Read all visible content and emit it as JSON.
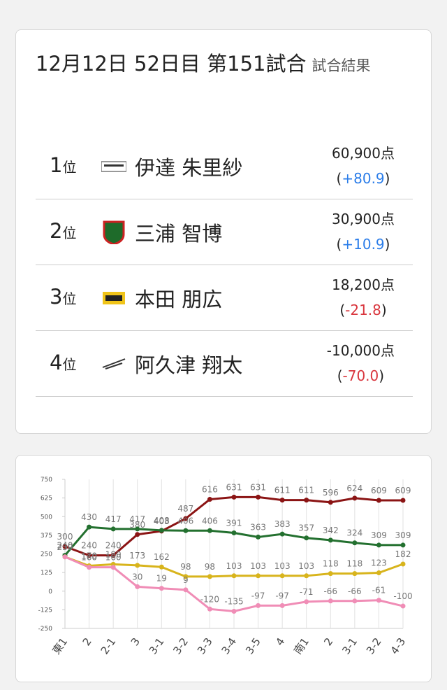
{
  "header": {
    "title": "12月12日 52日目 第151試合",
    "subtitle": "試合結果"
  },
  "results": [
    {
      "rank": "1",
      "rank_unit": "位",
      "name": "伊達 朱里紗",
      "score": "60,900点",
      "pt_open": "(",
      "pt": "+80.9",
      "pt_close": ")",
      "pt_color": "#2b7de9"
    },
    {
      "rank": "2",
      "rank_unit": "位",
      "name": "三浦 智博",
      "score": "30,900点",
      "pt_open": "(",
      "pt": "+10.9",
      "pt_close": ")",
      "pt_color": "#2b7de9"
    },
    {
      "rank": "3",
      "rank_unit": "位",
      "name": "本田 朋広",
      "score": "18,200点",
      "pt_open": "(",
      "pt": "-21.8",
      "pt_close": ")",
      "pt_color": "#d9363e"
    },
    {
      "rank": "4",
      "rank_unit": "位",
      "name": "阿久津 翔太",
      "score": "-10,000点",
      "pt_open": "(",
      "pt": "-70.0",
      "pt_close": ")",
      "pt_color": "#d9363e"
    }
  ],
  "chart_data": {
    "type": "line",
    "categories": [
      "東1",
      "2",
      "2-1",
      "3",
      "3-1",
      "3-2",
      "3-3",
      "3-4",
      "3-5",
      "4",
      "南1",
      "2",
      "3-1",
      "3-2",
      "4-3"
    ],
    "ylim": [
      -250,
      750
    ],
    "yticks": [
      -250,
      -125,
      0,
      125,
      250,
      375,
      500,
      625,
      750
    ],
    "grid": true,
    "series": [
      {
        "color": "#8b1414",
        "values": [
          300,
          240,
          240,
          380,
          403,
          487,
          616,
          631,
          631,
          611,
          611,
          596,
          624,
          609,
          609
        ]
      },
      {
        "color": "#23702f",
        "values": [
          240,
          430,
          417,
          417,
          408,
          406,
          406,
          391,
          363,
          383,
          357,
          342,
          324,
          309,
          309
        ]
      },
      {
        "color": "#d8b41c",
        "values": [
          230,
          170,
          180,
          173,
          162,
          98,
          98,
          103,
          103,
          103,
          103,
          118,
          118,
          123,
          182
        ]
      },
      {
        "color": "#f08db6",
        "values": [
          230,
          160,
          160,
          30,
          19,
          9,
          -120,
          -135,
          -97,
          -97,
          -71,
          -66,
          -66,
          -61,
          -100
        ]
      }
    ]
  }
}
